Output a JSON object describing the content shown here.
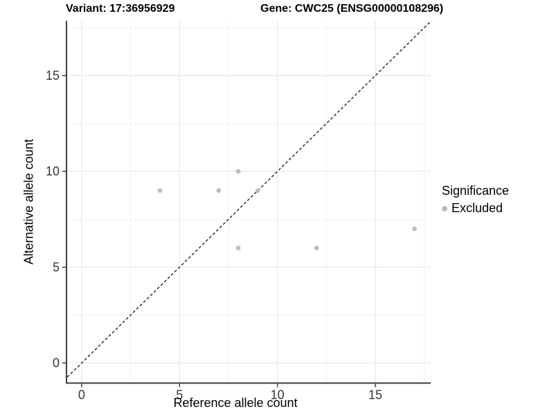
{
  "titles": {
    "variant": "Variant: 17:36956929",
    "gene": "Gene: CWC25 (ENSG00000108296)"
  },
  "axes": {
    "x_label": "Reference allele count",
    "y_label": "Alternative allele count"
  },
  "legend": {
    "title": "Significance",
    "items": [
      {
        "label": "Excluded",
        "color": "#bdbdbd"
      }
    ]
  },
  "chart_data": {
    "type": "scatter",
    "title": "Variant: 17:36956929 — Gene: CWC25 (ENSG00000108296)",
    "xlabel": "Reference allele count",
    "ylabel": "Alternative allele count",
    "series": [
      {
        "name": "Excluded",
        "color": "#bdbdbd",
        "points": [
          [
            4,
            9
          ],
          [
            7,
            9
          ],
          [
            8,
            10
          ],
          [
            9,
            9
          ],
          [
            8,
            6
          ],
          [
            12,
            6
          ],
          [
            17,
            7
          ]
        ]
      }
    ],
    "reference_line": {
      "type": "identity",
      "style": "dashed",
      "color": "#1f1f1f"
    },
    "x_ticks": [
      0,
      5,
      10,
      15
    ],
    "y_ticks": [
      0,
      5,
      10,
      15
    ],
    "x_minor_ticks": [
      2.5,
      7.5,
      12.5,
      17.5
    ],
    "y_minor_ticks": [
      2.5,
      7.5,
      12.5,
      17.5
    ],
    "xlim": [
      -0.74,
      17.83
    ],
    "ylim": [
      -1.05,
      17.86
    ],
    "grid": true,
    "legend_position": "right",
    "colors": {
      "major_grid": "#e8e8e8",
      "minor_grid": "#f2f2f2",
      "axis_line": "#3d3d3d",
      "tick_text": "#333333",
      "point": "#bdbdbd"
    }
  }
}
